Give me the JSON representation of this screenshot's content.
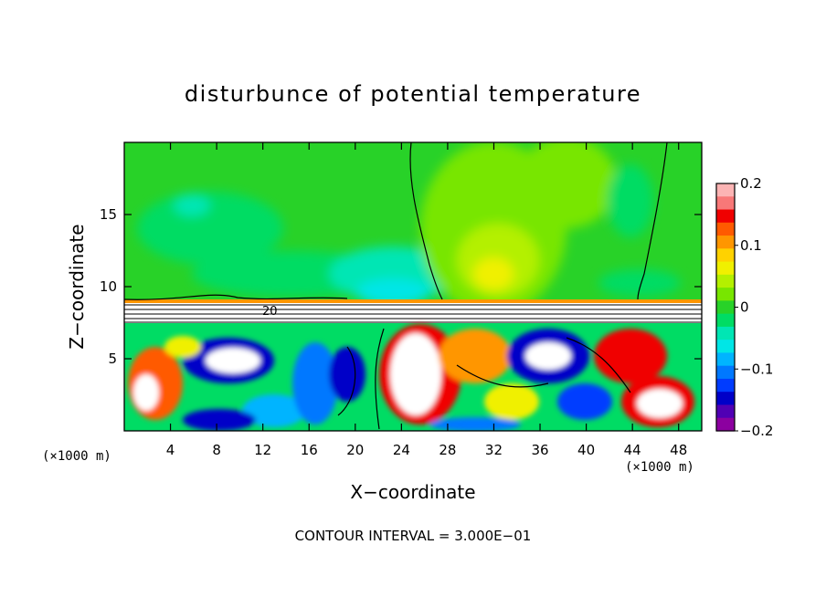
{
  "chart_data": {
    "type": "heatmap",
    "title": "disturbunce of potential temperature",
    "xlabel": "X−coordinate",
    "ylabel": "Z−coordinate",
    "x_unit_label": "(×1000 m)",
    "x_unit_label_left": "(×1000 m)",
    "xlim": [
      0,
      50
    ],
    "ylim": [
      0,
      20
    ],
    "x_ticks": [
      4,
      8,
      12,
      16,
      20,
      24,
      28,
      32,
      36,
      40,
      44,
      48
    ],
    "x_tick_labels": [
      "4",
      "8",
      "12",
      "16",
      "20",
      "24",
      "28",
      "32",
      "36",
      "40",
      "44",
      "48"
    ],
    "y_ticks": [
      5,
      10,
      15
    ],
    "y_tick_labels": [
      "5",
      "10",
      "15"
    ],
    "colorbar": {
      "range": [
        -0.2,
        0.2
      ],
      "ticks": [
        0.2,
        0.1,
        0,
        -0.1,
        -0.2
      ],
      "tick_labels": [
        "0.2",
        "0.1",
        "0",
        "−0.1",
        "−0.2"
      ],
      "colors": [
        "#fcb4b4",
        "#f87878",
        "#f00000",
        "#ff5a00",
        "#ff9600",
        "#ffd200",
        "#f0f000",
        "#b4f000",
        "#78e600",
        "#28d228",
        "#00dc64",
        "#00e6b4",
        "#00e6e6",
        "#00b4ff",
        "#0078ff",
        "#003cff",
        "#0000c8",
        "#5000b4",
        "#8c00a0"
      ]
    },
    "contour_interval_label": "CONTOUR INTERVAL = 3.000E−01",
    "annotations": [
      "20"
    ],
    "grid": false,
    "legend": "colorbar right"
  }
}
